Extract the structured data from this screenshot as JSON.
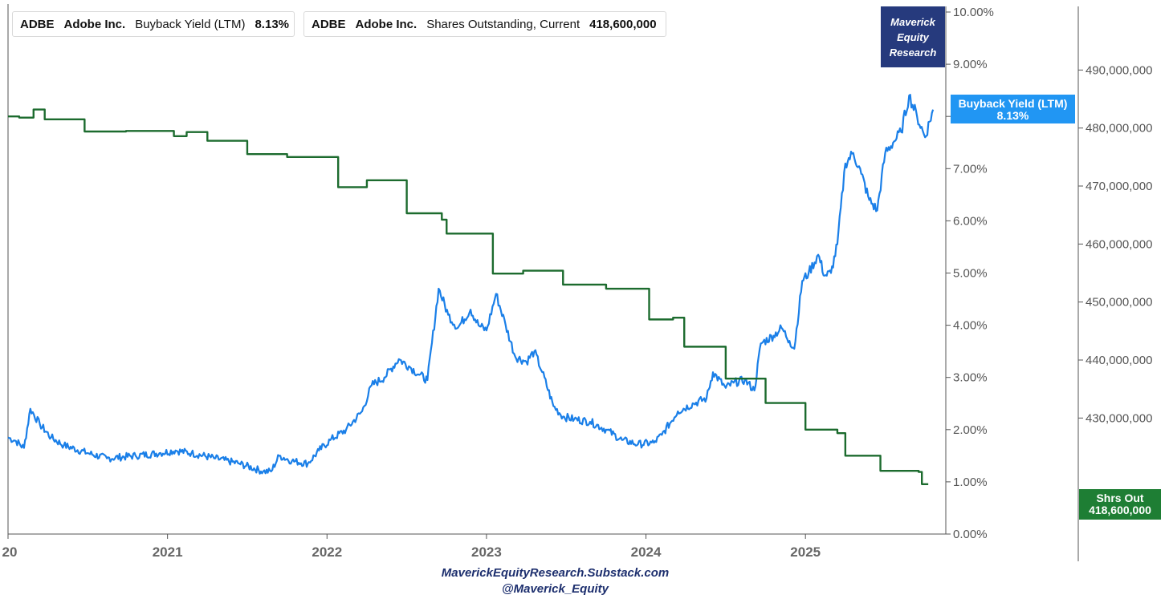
{
  "legend": [
    {
      "ticker": "ADBE",
      "name": "Adobe Inc.",
      "metric": "Buyback Yield (LTM)",
      "value": "8.13%",
      "color": "#1a7fe8"
    },
    {
      "ticker": "ADBE",
      "name": "Adobe Inc.",
      "metric": "Shares Outstanding, Current",
      "value": "418,600,000",
      "color": "#1c6b2e"
    }
  ],
  "badge": {
    "line1": "Maverick",
    "line2": "Equity",
    "line3": "Research"
  },
  "tags": {
    "yield_title": "Buyback Yield (LTM)",
    "yield_value": "8.13%",
    "yield_color": "#2196f3",
    "shares_title": "Shrs Out",
    "shares_value": "418,600,000",
    "shares_color": "#1e7e34"
  },
  "footer": {
    "line1": "MaverickEquityResearch.Substack.com",
    "line2": "@Maverick_Equity"
  },
  "chart_data": {
    "type": "line",
    "title": "",
    "xlabel": "",
    "x_ticks": [
      "20",
      "2021",
      "2022",
      "2023",
      "2024",
      "2025"
    ],
    "x_range": [
      2020.0,
      2025.88
    ],
    "y_left": {
      "label": "Buyback Yield (LTM)",
      "range": [
        0,
        10
      ],
      "ticks": [
        "0.00%",
        "1.00%",
        "2.00%",
        "3.00%",
        "4.00%",
        "5.00%",
        "6.00%",
        "7.00%",
        "8.00%",
        "9.00%",
        "10.00%"
      ]
    },
    "y_right": {
      "label": "Shares Outstanding, Current",
      "range": [
        410000000,
        500000000
      ],
      "ticks": [
        "430,000,000",
        "440,000,000",
        "450,000,000",
        "460,000,000",
        "470,000,000",
        "480,000,000",
        "490,000,000"
      ]
    },
    "series": [
      {
        "name": "Buyback Yield (LTM)",
        "axis": "left",
        "color": "#1a7fe8",
        "x": [
          2020.0,
          2020.05,
          2020.1,
          2020.14,
          2020.2,
          2020.27,
          2020.35,
          2020.5,
          2020.62,
          2020.8,
          2020.95,
          2021.05,
          2021.15,
          2021.3,
          2021.45,
          2021.6,
          2021.65,
          2021.7,
          2021.78,
          2021.88,
          2021.95,
          2022.02,
          2022.12,
          2022.22,
          2022.28,
          2022.36,
          2022.45,
          2022.52,
          2022.58,
          2022.63,
          2022.7,
          2022.76,
          2022.82,
          2022.9,
          2022.95,
          2023.0,
          2023.06,
          2023.12,
          2023.18,
          2023.25,
          2023.3,
          2023.35,
          2023.42,
          2023.48,
          2023.55,
          2023.65,
          2023.75,
          2023.85,
          2023.95,
          2024.05,
          2024.1,
          2024.2,
          2024.3,
          2024.38,
          2024.42,
          2024.5,
          2024.55,
          2024.62,
          2024.68,
          2024.72,
          2024.8,
          2024.85,
          2024.9,
          2024.93,
          2024.98,
          2025.02,
          2025.08,
          2025.12,
          2025.16,
          2025.2,
          2025.25,
          2025.3,
          2025.35,
          2025.4,
          2025.45,
          2025.5,
          2025.55,
          2025.6,
          2025.65,
          2025.7,
          2025.75,
          2025.8
        ],
        "y": [
          1.85,
          1.78,
          1.65,
          2.4,
          2.1,
          1.85,
          1.7,
          1.55,
          1.45,
          1.5,
          1.55,
          1.6,
          1.55,
          1.45,
          1.35,
          1.2,
          1.2,
          1.5,
          1.4,
          1.35,
          1.6,
          1.8,
          2.0,
          2.35,
          2.85,
          3.0,
          3.35,
          3.2,
          3.05,
          2.95,
          4.7,
          4.2,
          3.95,
          4.3,
          4.0,
          3.9,
          4.6,
          4.0,
          3.4,
          3.3,
          3.5,
          3.1,
          2.45,
          2.25,
          2.2,
          2.15,
          2.0,
          1.8,
          1.72,
          1.75,
          1.9,
          2.35,
          2.5,
          2.6,
          3.1,
          2.8,
          2.9,
          2.95,
          2.75,
          3.65,
          3.8,
          3.95,
          3.7,
          3.55,
          4.85,
          5.0,
          5.35,
          4.95,
          5.0,
          5.55,
          7.1,
          7.3,
          6.9,
          6.4,
          6.2,
          7.3,
          7.5,
          7.7,
          8.4,
          8.0,
          7.6,
          8.13
        ]
      },
      {
        "name": "Shares Outstanding, Current",
        "axis": "right",
        "color": "#1c6b2e",
        "x": [
          2020.0,
          2020.07,
          2020.16,
          2020.23,
          2020.48,
          2020.74,
          2021.04,
          2021.12,
          2021.25,
          2021.5,
          2021.75,
          2022.07,
          2022.25,
          2022.5,
          2022.72,
          2022.75,
          2023.04,
          2023.23,
          2023.48,
          2023.75,
          2024.02,
          2024.17,
          2024.24,
          2024.5,
          2024.75,
          2025.0,
          2025.2,
          2025.25,
          2025.47,
          2025.71,
          2025.73,
          2025.77
        ],
        "y": [
          482000000,
          481800000,
          483200000,
          481500000,
          479400000,
          479500000,
          478600000,
          479300000,
          477800000,
          475500000,
          475000000,
          469800000,
          471000000,
          465300000,
          464200000,
          461800000,
          454900000,
          455400000,
          453000000,
          452300000,
          447000000,
          447300000,
          442300000,
          436800000,
          432600000,
          428000000,
          427400000,
          423500000,
          420900000,
          420700000,
          418600000,
          418600000
        ]
      }
    ]
  }
}
